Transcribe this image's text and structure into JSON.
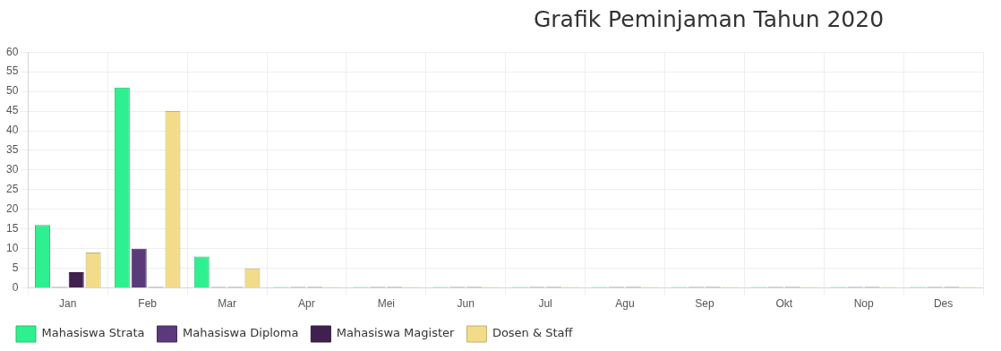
{
  "chart_data": {
    "type": "bar",
    "title": "Grafik Peminjaman Tahun 2020",
    "categories": [
      "Jan",
      "Feb",
      "Mar",
      "Apr",
      "Mei",
      "Jun",
      "Jul",
      "Agu",
      "Sep",
      "Okt",
      "Nop",
      "Des"
    ],
    "series": [
      {
        "name": "Mahasiswa Strata",
        "color": "#2ef08f",
        "values": [
          16,
          51,
          8,
          0,
          0,
          0,
          0,
          0,
          0,
          0,
          0,
          0
        ]
      },
      {
        "name": "Mahasiswa Diploma",
        "color": "#5a3a7a",
        "values": [
          0,
          10,
          0,
          0,
          0,
          0,
          0,
          0,
          0,
          0,
          0,
          0
        ]
      },
      {
        "name": "Mahasiswa Magister",
        "color": "#40204f",
        "values": [
          4,
          0,
          0,
          0,
          0,
          0,
          0,
          0,
          0,
          0,
          0,
          0
        ]
      },
      {
        "name": "Dosen & Staff",
        "color": "#f2dc8a",
        "values": [
          9,
          45,
          5,
          0,
          0,
          0,
          0,
          0,
          0,
          0,
          0,
          0
        ]
      }
    ],
    "ylim": [
      0,
      60
    ],
    "yticks": [
      0,
      5,
      10,
      15,
      20,
      25,
      30,
      35,
      40,
      45,
      50,
      55,
      60
    ],
    "grid": true,
    "legend": "bottom left"
  }
}
